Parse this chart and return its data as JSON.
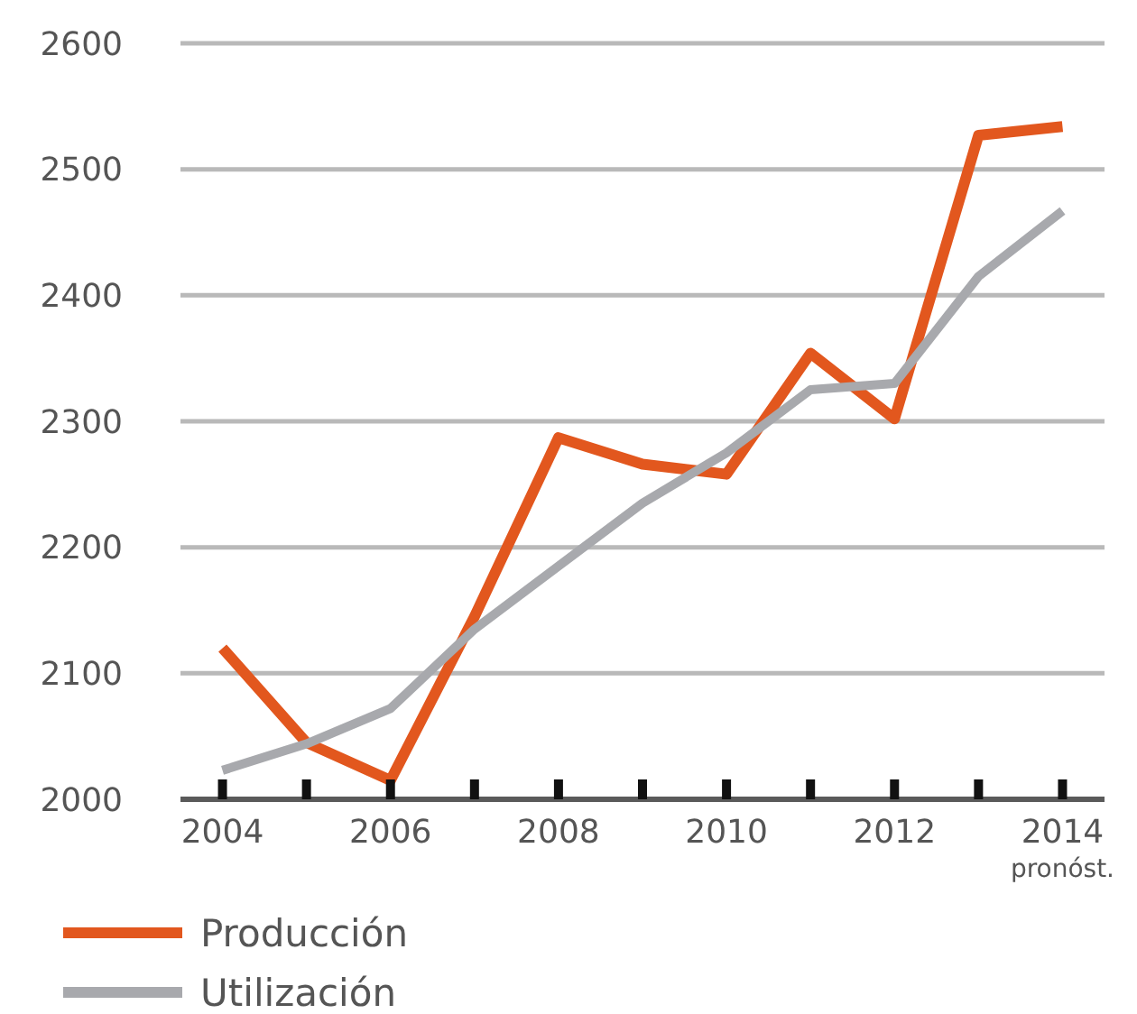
{
  "chart_data": {
    "type": "line",
    "x": [
      2004,
      2005,
      2006,
      2007,
      2008,
      2009,
      2010,
      2011,
      2012,
      2013,
      2014
    ],
    "series": [
      {
        "name": "Producción",
        "color": "#e2571e",
        "values": [
          2120,
          2045,
          2015,
          2145,
          2287,
          2266,
          2258,
          2354,
          2302,
          2527,
          2534
        ]
      },
      {
        "name": "Utilización",
        "color": "#a8a9ad",
        "values": [
          2023,
          2044,
          2072,
          2135,
          2185,
          2235,
          2275,
          2325,
          2330,
          2415,
          2467
        ]
      }
    ],
    "xlim": [
      2003.5,
      2014.5
    ],
    "xticks": [
      2004,
      {
        "value": 2005,
        "label": null
      },
      2006,
      {
        "value": 2007,
        "label": null
      },
      2008,
      {
        "value": 2009,
        "label": null
      },
      2010,
      {
        "value": 2011,
        "label": null
      },
      2012,
      {
        "value": 2013,
        "label": null
      },
      {
        "value": 2014,
        "label": "2014 $_{pronóst.}$"
      }
    ],
    "ylim": [
      2000,
      2600
    ],
    "yticks": [
      2000,
      2100,
      2200,
      2300,
      2400,
      2500,
      2600
    ],
    "grid": "y",
    "legend": "bottom left",
    "line_style": "solid"
  }
}
